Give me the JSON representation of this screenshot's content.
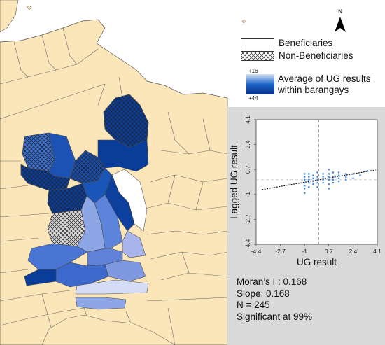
{
  "north_arrow": {
    "label": "N"
  },
  "legend": {
    "beneficiaries": "Beneficiaries",
    "non_beneficiaries": "Non-Beneficiaries",
    "scale_top": "+16",
    "scale_bottom": "+44",
    "scale_label_line1": "Average of UG results",
    "scale_label_line2": "within barangays"
  },
  "colors": {
    "land": "#fbe6b9",
    "water": "#ffffff",
    "dark_blue": "#0a3d99",
    "mid_blue": "#3b6fd0",
    "light_blue": "#8da6e6",
    "pale_blue": "#d4dcf6"
  },
  "chart_data": {
    "type": "scatter",
    "title": "",
    "xlabel": "UG result",
    "ylabel": "Lagged UG result",
    "xlim": [
      -4.4,
      4.1
    ],
    "ylim": [
      -4.4,
      4.1
    ],
    "xticks": [
      "-4.4",
      "-2.7",
      "-1",
      "0.7",
      "2.4",
      "4.1"
    ],
    "yticks": [
      "-4.4",
      "-2.7",
      "-1",
      "0.7",
      "2.4",
      "4.1"
    ],
    "regression": {
      "slope": 0.168,
      "intercept": 0.0
    },
    "mean_lines": {
      "x": 0,
      "y": 0
    },
    "x_columns": [
      -1.0,
      -0.7,
      -0.4,
      -0.1,
      0.3,
      0.7,
      1.0,
      1.4,
      1.9,
      2.4
    ],
    "x": [
      -1.0,
      -1.0,
      -1.0,
      -1.0,
      -1.0,
      -1.0,
      -1.0,
      -0.7,
      -0.7,
      -0.7,
      -0.7,
      -0.7,
      -0.4,
      -0.4,
      -0.4,
      -0.4,
      -0.1,
      -0.1,
      -0.1,
      -0.1,
      -0.1,
      0.3,
      0.3,
      0.3,
      0.3,
      0.7,
      0.7,
      0.7,
      0.7,
      0.7,
      0.7,
      1.0,
      1.0,
      1.0,
      1.0,
      1.4,
      1.4,
      1.4,
      1.4,
      1.9,
      1.9,
      1.9,
      2.4,
      2.4,
      2.9,
      3.4
    ],
    "y": [
      -0.9,
      -0.6,
      -0.4,
      -0.2,
      0.0,
      0.2,
      0.4,
      -0.5,
      -0.2,
      0.0,
      0.2,
      0.4,
      -0.3,
      -0.1,
      0.1,
      0.3,
      -0.5,
      -0.2,
      0.0,
      0.2,
      0.5,
      -0.2,
      0.0,
      0.2,
      0.4,
      -0.6,
      -0.3,
      0.0,
      0.2,
      0.4,
      0.7,
      -0.2,
      0.0,
      0.2,
      0.5,
      -0.1,
      0.1,
      0.3,
      0.5,
      0.0,
      0.2,
      0.4,
      0.1,
      0.4,
      0.3,
      0.6
    ]
  },
  "stats": {
    "morans_i": "Moran’s I : 0.168",
    "slope": "Slope: 0.168",
    "n": "N = 245",
    "significance": "Significant at 99%"
  }
}
